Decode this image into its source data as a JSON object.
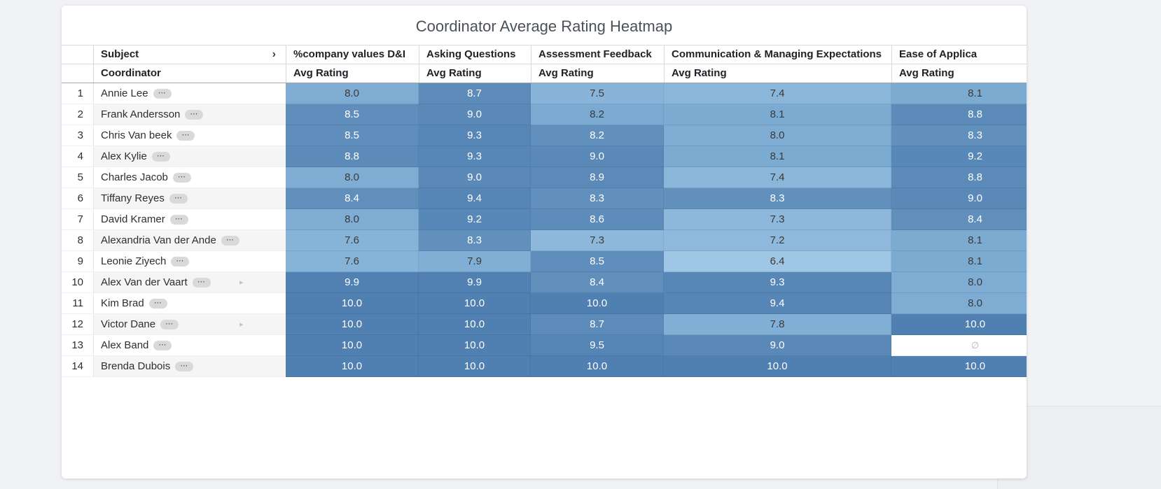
{
  "title": "Coordinator Average Rating Heatmap",
  "header": {
    "dimension_label": "Subject",
    "dimension_sub_label": "Coordinator",
    "measure_label": "Avg Rating",
    "chevron": "›",
    "columns": [
      "%company values D&I",
      "Asking Questions",
      "Assessment Feedback",
      "Communication & Managing Expectations",
      "Ease of Applica"
    ]
  },
  "badges": {
    "more_label": "⋯",
    "overflow_arrow": "▸"
  },
  "chart_data": {
    "type": "heatmap",
    "title": "Coordinator Average Rating Heatmap",
    "row_header": "Coordinator",
    "columns": [
      "%company values D&I",
      "Asking Questions",
      "Assessment Feedback",
      "Communication & Managing Expectations",
      "Ease of Applica"
    ],
    "measure": "Avg Rating",
    "rows": [
      {
        "num": 1,
        "name": "Annie Lee",
        "values": [
          8.0,
          8.7,
          7.5,
          7.4,
          8.1
        ]
      },
      {
        "num": 2,
        "name": "Frank Andersson",
        "values": [
          8.5,
          9.0,
          8.2,
          8.1,
          8.8
        ]
      },
      {
        "num": 3,
        "name": "Chris Van beek",
        "values": [
          8.5,
          9.3,
          8.2,
          8.0,
          8.3
        ]
      },
      {
        "num": 4,
        "name": "Alex Kylie",
        "values": [
          8.8,
          9.3,
          9.0,
          8.1,
          9.2
        ]
      },
      {
        "num": 5,
        "name": "Charles Jacob",
        "values": [
          8.0,
          9.0,
          8.9,
          7.4,
          8.8
        ]
      },
      {
        "num": 6,
        "name": "Tiffany Reyes",
        "values": [
          8.4,
          9.4,
          8.3,
          8.3,
          9.0
        ]
      },
      {
        "num": 7,
        "name": "David Kramer",
        "values": [
          8.0,
          9.2,
          8.6,
          7.3,
          8.4
        ]
      },
      {
        "num": 8,
        "name": "Alexandria Van der Ande",
        "values": [
          7.6,
          8.3,
          7.3,
          7.2,
          8.1
        ]
      },
      {
        "num": 9,
        "name": "Leonie Ziyech",
        "values": [
          7.6,
          7.9,
          8.5,
          6.4,
          8.1
        ]
      },
      {
        "num": 10,
        "name": "Alex Van der Vaart",
        "values": [
          9.9,
          9.9,
          8.4,
          9.3,
          8.0
        ],
        "overflow_arrow": true
      },
      {
        "num": 11,
        "name": "Kim Brad",
        "values": [
          10.0,
          10.0,
          10.0,
          9.4,
          8.0
        ]
      },
      {
        "num": 12,
        "name": "Victor Dane",
        "values": [
          10.0,
          10.0,
          8.7,
          7.8,
          10.0
        ],
        "overflow_arrow": true
      },
      {
        "num": 13,
        "name": "Alex Band",
        "values": [
          10.0,
          10.0,
          9.5,
          9.0,
          null
        ]
      },
      {
        "num": 14,
        "name": "Brenda Dubois",
        "values": [
          10.0,
          10.0,
          10.0,
          10.0,
          10.0
        ]
      }
    ],
    "empty_symbol": "∅",
    "value_range": [
      6.4,
      10.0
    ],
    "color_scale": {
      "min_value": 6.4,
      "light_max_value": 8.2,
      "white_text_threshold": 8.3,
      "max_value": 10.0,
      "light_min": "#9fc6e5",
      "light_max": "#7aa9d1",
      "dark_min": "#6290bd",
      "dark_max": "#4f80b1"
    },
    "extra_dark_cells": [
      [
        2,
        2
      ]
    ]
  }
}
